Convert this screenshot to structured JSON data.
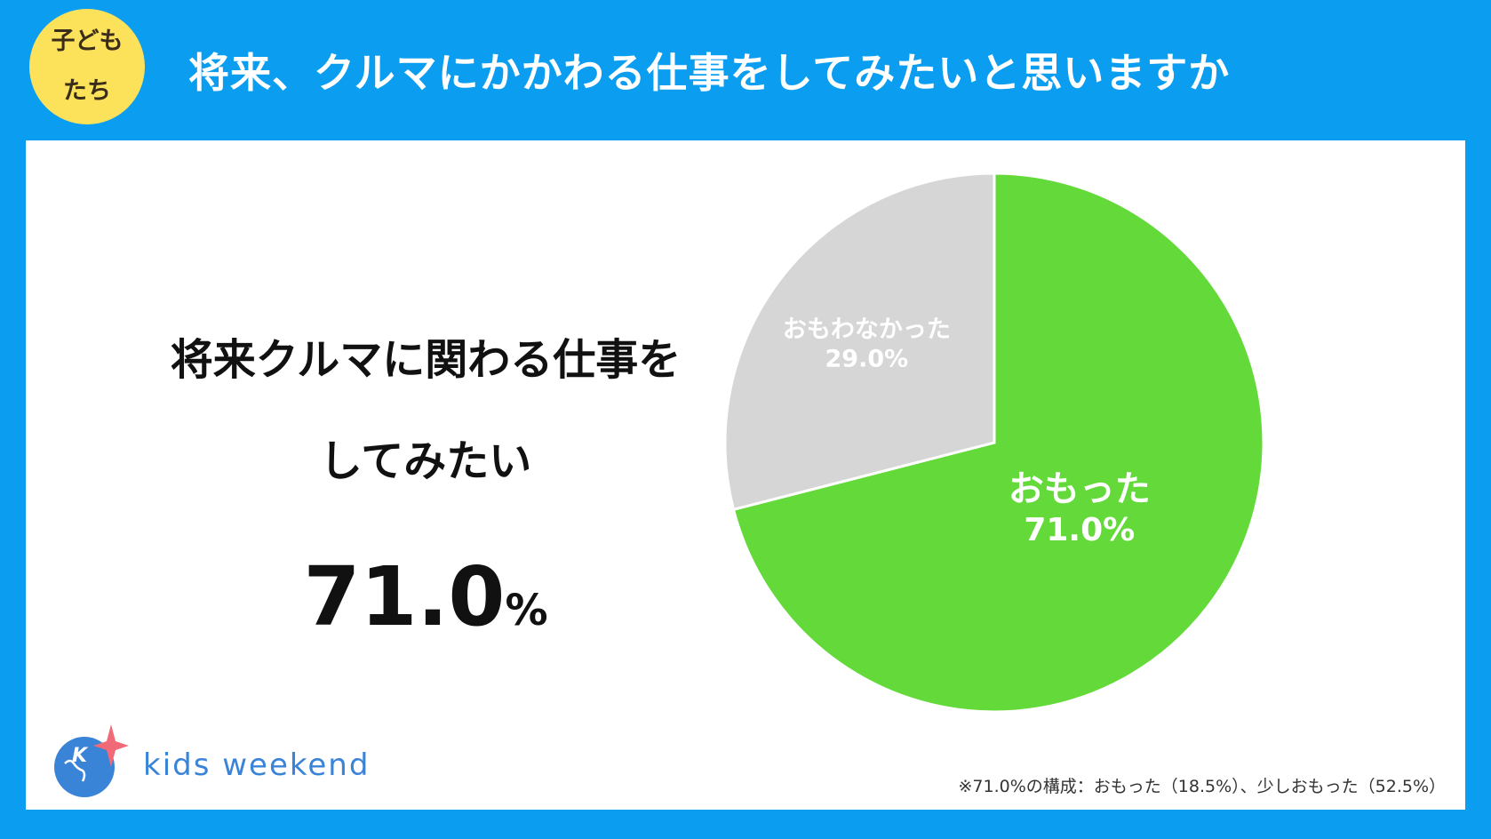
{
  "header": {
    "badge_line1": "子ども",
    "badge_line2": "たち",
    "title": "将来、クルマにかかわる仕事をしてみたいと思いますか"
  },
  "headline": {
    "line1": "将来クルマに関わる仕事を",
    "line2": "してみたい",
    "value": "71.0",
    "unit": "%"
  },
  "brand": {
    "logo_letter": "K",
    "name": "kids weekend"
  },
  "footnote": "※71.0%の構成：おもった（18.5%）、少しおもった（52.5%）",
  "colors": {
    "background": "#0a9df0",
    "badge": "#fbe25a",
    "slice_yes": "#63d93a",
    "slice_no": "#d6d6d6",
    "brand": "#3a84d8"
  },
  "chart_data": {
    "type": "pie",
    "start_angle": "12 o'clock",
    "direction": "clockwise",
    "slices": [
      {
        "label": "おもった",
        "value": 71.0,
        "display": "71.0%",
        "color": "#63d93a"
      },
      {
        "label": "おもわなかった",
        "value": 29.0,
        "display": "29.0%",
        "color": "#d6d6d6"
      }
    ]
  }
}
